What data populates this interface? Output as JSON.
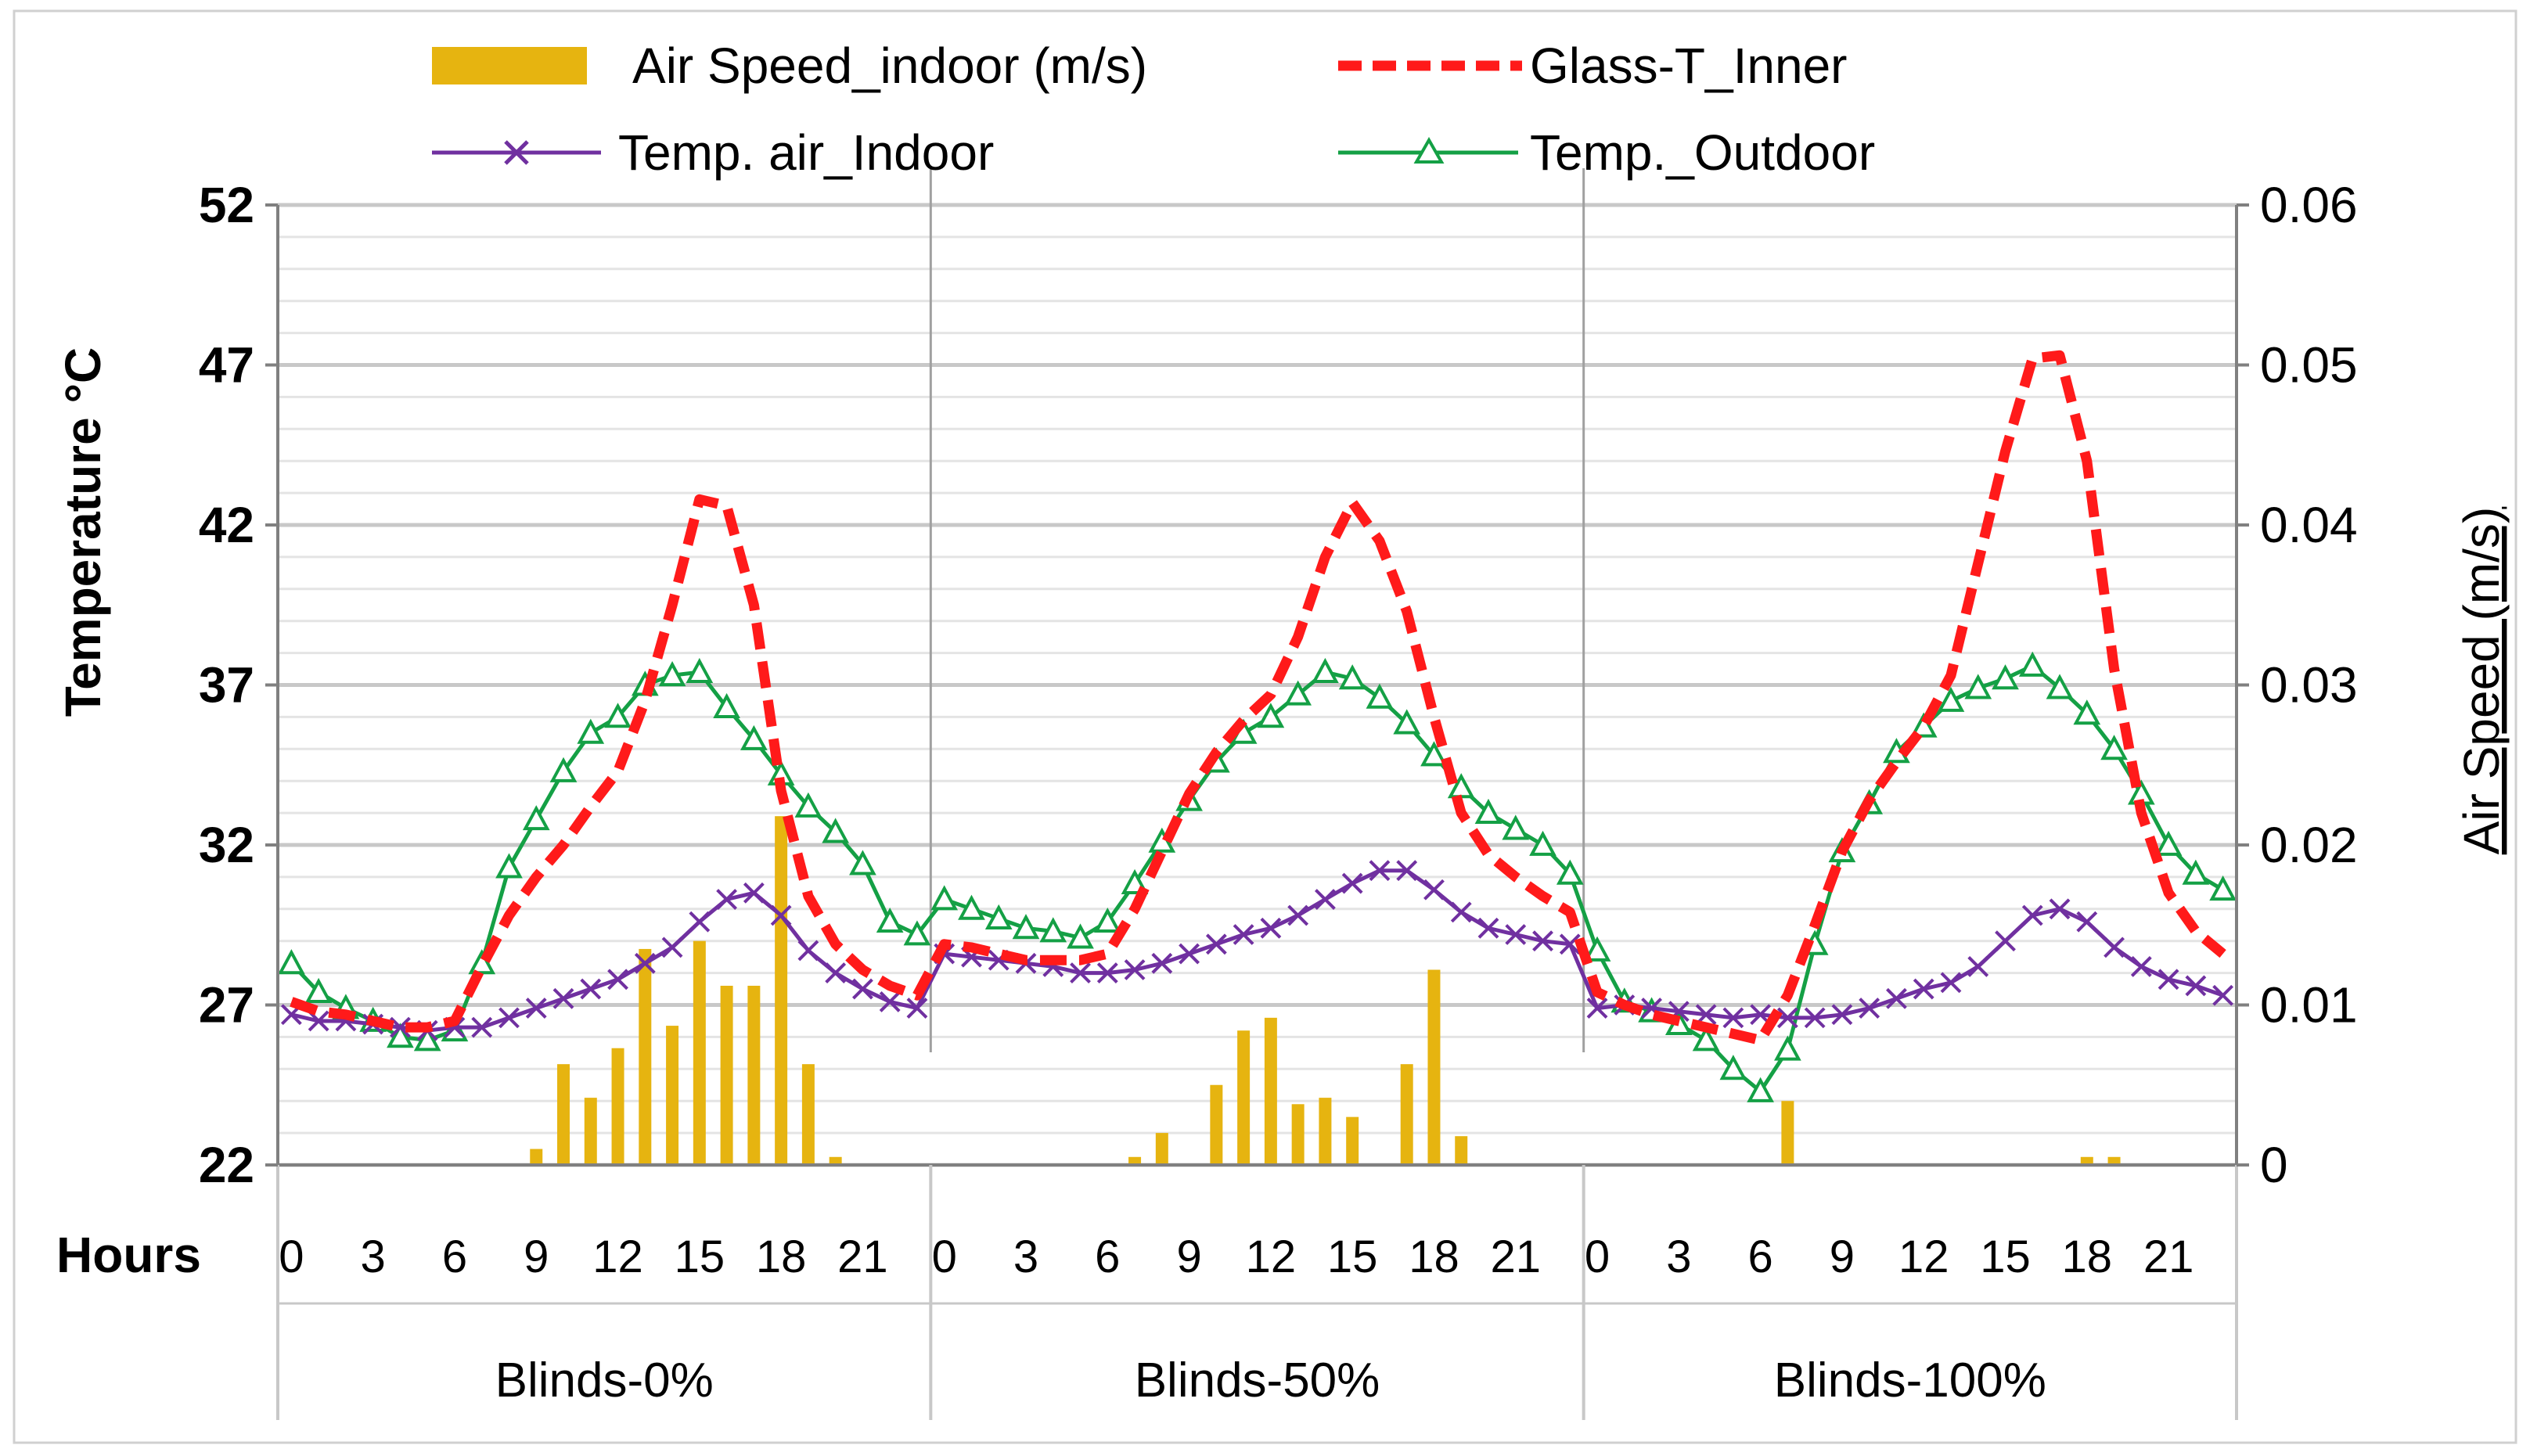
{
  "colors": {
    "air_speed": "#E6B410",
    "glass": "#FF1A1A",
    "indoor": "#7030A0",
    "outdoor": "#14A045",
    "grid": "#D9D9D9",
    "axis": "#808080"
  },
  "chart_data": {
    "type": "line",
    "ylabel": "Temperature °C",
    "y2label": "Air Speed (m/s)",
    "xlabel": "Hours",
    "ylim": [
      22,
      52
    ],
    "y2lim": [
      0,
      0.06
    ],
    "yticks": [
      "22",
      "27",
      "32",
      "37",
      "42",
      "47",
      "52"
    ],
    "y2ticks": [
      "0",
      "0.01",
      "0.02",
      "0.03",
      "0.04",
      "0.05",
      "0.06"
    ],
    "hour_ticks": [
      "0",
      "3",
      "6",
      "9",
      "12",
      "15",
      "18",
      "21"
    ],
    "groups": [
      "Blinds-0%",
      "Blinds-50%",
      "Blinds-100%"
    ],
    "legend": {
      "air_speed": "Air Speed_indoor (m/s)",
      "glass": "Glass-T_Inner",
      "indoor": "Temp. air_Indoor",
      "outdoor": "Temp._Outdoor"
    },
    "series": [
      {
        "name": "Air Speed_indoor (m/s)",
        "axis": "secondary",
        "type": "bar",
        "values": [
          [
            0,
            0,
            0,
            0,
            0,
            0,
            0,
            0,
            0,
            0.001,
            0.0063,
            0.0042,
            0.0073,
            0.0135,
            0.0087,
            0.014,
            0.0112,
            0.0112,
            0.0218,
            0.0063,
            0.0005,
            0,
            0,
            0
          ],
          [
            0,
            0,
            0,
            0,
            0,
            0,
            0,
            0.0005,
            0.002,
            0,
            0.005,
            0.0084,
            0.0092,
            0.0038,
            0.0042,
            0.003,
            0,
            0.0063,
            0.0122,
            0.0018,
            0,
            0,
            0,
            0
          ],
          [
            0,
            0,
            0,
            0,
            0,
            0,
            0,
            0.004,
            0,
            0,
            0,
            0,
            0,
            0,
            0,
            0,
            0,
            0,
            0.0005,
            0.0005,
            0,
            0,
            0,
            0
          ]
        ]
      },
      {
        "name": "Glass-T_Inner",
        "type": "line",
        "values": [
          [
            27.1,
            26.8,
            26.7,
            26.5,
            26.3,
            26.3,
            26.5,
            28.2,
            29.8,
            31.0,
            32.0,
            33.2,
            34.3,
            36.5,
            39.5,
            42.8,
            42.6,
            39.5,
            33.7,
            30.4,
            28.9,
            28.1,
            27.6,
            27.3
          ],
          [
            28.9,
            28.8,
            28.6,
            28.4,
            28.4,
            28.4,
            28.6,
            30.0,
            31.8,
            33.6,
            34.9,
            35.9,
            36.7,
            38.5,
            41.0,
            42.7,
            41.5,
            39.3,
            36.0,
            33.0,
            31.7,
            31.0,
            30.4,
            29.9
          ],
          [
            27.4,
            27.0,
            26.7,
            26.5,
            26.3,
            26.1,
            25.9,
            27.3,
            29.5,
            31.8,
            33.4,
            34.6,
            35.7,
            37.3,
            40.8,
            44.3,
            47.2,
            47.3,
            44.0,
            37.5,
            33.0,
            30.5,
            29.3,
            28.6
          ]
        ]
      },
      {
        "name": "Temp. air_Indoor",
        "type": "line",
        "values": [
          [
            26.7,
            26.5,
            26.5,
            26.4,
            26.3,
            26.2,
            26.3,
            26.3,
            26.6,
            26.9,
            27.2,
            27.5,
            27.8,
            28.3,
            28.8,
            29.6,
            30.3,
            30.5,
            29.8,
            28.7,
            28.0,
            27.5,
            27.1,
            26.9
          ],
          [
            28.6,
            28.5,
            28.4,
            28.3,
            28.2,
            28.0,
            28.0,
            28.1,
            28.3,
            28.6,
            28.9,
            29.2,
            29.4,
            29.8,
            30.3,
            30.8,
            31.2,
            31.2,
            30.6,
            29.9,
            29.4,
            29.2,
            29.0,
            28.9
          ],
          [
            26.9,
            27.0,
            26.9,
            26.8,
            26.7,
            26.6,
            26.7,
            26.6,
            26.6,
            26.7,
            26.9,
            27.2,
            27.5,
            27.7,
            28.2,
            29.0,
            29.8,
            30.0,
            29.6,
            28.8,
            28.2,
            27.8,
            27.6,
            27.3
          ]
        ]
      },
      {
        "name": "Temp._Outdoor",
        "type": "line",
        "values": [
          [
            28.3,
            27.4,
            26.9,
            26.5,
            26.0,
            25.9,
            26.2,
            28.3,
            31.3,
            32.8,
            34.3,
            35.5,
            36.0,
            37.0,
            37.3,
            37.4,
            36.3,
            35.3,
            34.2,
            33.2,
            32.4,
            31.4,
            29.6,
            29.2
          ],
          [
            30.3,
            30.0,
            29.7,
            29.4,
            29.3,
            29.1,
            29.6,
            30.8,
            32.1,
            33.4,
            34.6,
            35.5,
            36.0,
            36.7,
            37.4,
            37.2,
            36.6,
            35.8,
            34.8,
            33.8,
            33.0,
            32.5,
            32.0,
            31.1
          ],
          [
            28.7,
            27.1,
            26.8,
            26.4,
            25.9,
            25.0,
            24.3,
            25.6,
            28.9,
            31.8,
            33.3,
            34.9,
            35.7,
            36.5,
            36.9,
            37.2,
            37.6,
            36.9,
            36.1,
            35.0,
            33.6,
            32.0,
            31.1,
            30.6
          ]
        ]
      }
    ]
  }
}
